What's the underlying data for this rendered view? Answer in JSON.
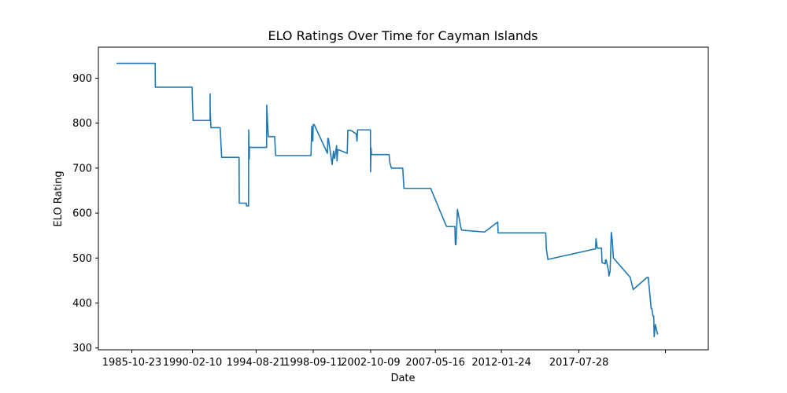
{
  "chart_data": {
    "type": "line",
    "title": "ELO Ratings Over Time for Cayman Islands",
    "xlabel": "Date",
    "ylabel": "ELO Rating",
    "ylim": [
      296,
      969
    ],
    "xlim": [
      "1983-06-07",
      "2026-10-06"
    ],
    "grid": false,
    "x_tick_labels": [
      "1985-10-23",
      "1990-02-10",
      "1994-08-21",
      "1998-09-11",
      "2002-10-09",
      "2007-05-16",
      "2012-01-24",
      "2017-07-28",
      ""
    ],
    "x_ticks": [
      "1985-10-23",
      "1990-02-10",
      "1994-08-21",
      "1998-09-11",
      "2002-10-09",
      "2007-05-16",
      "2012-01-24",
      "2017-07-28",
      "2023-09-20"
    ],
    "y_ticks": [
      300,
      400,
      500,
      600,
      700,
      800,
      900
    ],
    "color": "#1f77b4",
    "series": [
      {
        "x": [
          "1984-09-18",
          "1987-06-20",
          "1987-06-25",
          "1990-02-02",
          "1990-02-10",
          "1990-03-01",
          "1990-03-20",
          "1991-05-15",
          "1991-05-16",
          "1991-05-17",
          "1991-06-05",
          "1992-02-01",
          "1992-03-10",
          "1993-06-05",
          "1993-06-10",
          "1993-12-10",
          "1993-12-15",
          "1994-02-05",
          "1994-02-10",
          "1994-02-25",
          "1994-03-01",
          "1994-03-15",
          "1995-05-20",
          "1995-05-25",
          "1995-06-15",
          "1995-07-05",
          "1995-12-15",
          "1996-01-10",
          "1998-07-15",
          "1998-08-05",
          "1998-09-01",
          "1998-09-11",
          "1998-10-05",
          "1999-09-15",
          "1999-09-25",
          "1999-10-10",
          "2000-01-15",
          "2000-02-20",
          "2000-03-10",
          "2000-03-20",
          "2000-05-10",
          "2000-05-20",
          "2000-06-10",
          "2000-06-20",
          "2001-02-10",
          "2001-02-25",
          "2001-03-05",
          "2001-05-15",
          "2001-10-01",
          "2001-10-20",
          "2001-11-05",
          "2002-10-05",
          "2002-10-09",
          "2002-10-20",
          "2002-11-01",
          "2004-02-01",
          "2004-02-20",
          "2004-04-01",
          "2005-01-20",
          "2005-02-20",
          "2007-01-15",
          "2008-02-20",
          "2008-03-15",
          "2008-10-05",
          "2008-10-15",
          "2008-11-01",
          "2008-12-10",
          "2009-03-15",
          "2009-04-01",
          "2010-10-15",
          "2010-11-15",
          "2011-10-20",
          "2011-11-01",
          "2011-11-15",
          "2015-03-20",
          "2015-04-05",
          "2015-05-15",
          "2018-09-05",
          "2018-10-01",
          "2018-10-15",
          "2018-11-15",
          "2019-03-05",
          "2019-03-20",
          "2019-06-10",
          "2019-06-20",
          "2019-07-05",
          "2019-09-05",
          "2019-09-15",
          "2019-10-15",
          "2019-11-15",
          "2019-12-10",
          "2020-01-10",
          "2021-03-20",
          "2021-06-05",
          "2022-06-01",
          "2022-07-01",
          "2022-09-15",
          "2022-10-01",
          "2022-11-01",
          "2022-11-20",
          "2022-12-01",
          "2023-01-01",
          "2023-03-01"
        ],
        "values": [
          933,
          933,
          880,
          880,
          850,
          806,
          806,
          806,
          865,
          830,
          790,
          790,
          724,
          724,
          622,
          622,
          616,
          616,
          785,
          720,
          746,
          746,
          746,
          840,
          800,
          770,
          770,
          728,
          728,
          793,
          760,
          797,
          797,
          733,
          766,
          766,
          708,
          738,
          722,
          722,
          750,
          716,
          741,
          741,
          733,
          784,
          784,
          784,
          776,
          760,
          785,
          785,
          692,
          745,
          730,
          730,
          712,
          700,
          700,
          655,
          655,
          572,
          570,
          570,
          530,
          530,
          608,
          565,
          562,
          558,
          558,
          580,
          556,
          556,
          556,
          520,
          497,
          520,
          520,
          543,
          522,
          522,
          490,
          487,
          496,
          496,
          471,
          460,
          471,
          557,
          540,
          500,
          457,
          430,
          457,
          457,
          388,
          388,
          371,
          371,
          325,
          352,
          330
        ]
      }
    ]
  }
}
